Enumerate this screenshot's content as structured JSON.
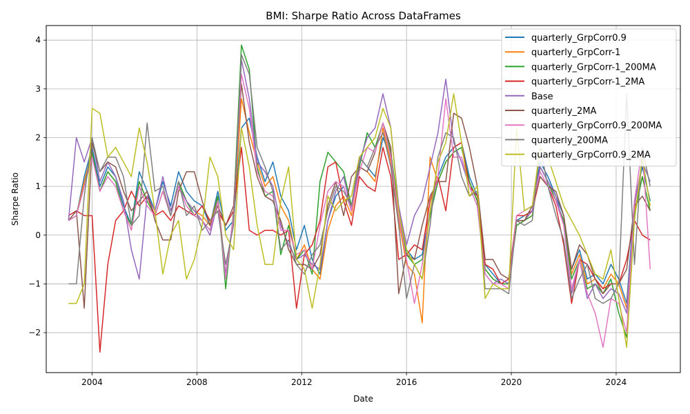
{
  "chart_data": {
    "type": "line",
    "title": "BMI: Sharpe Ratio Across DataFrames",
    "xlabel": "Date",
    "ylabel": "Sharpe Ratio",
    "xlim": [
      2002.25,
      2026.45
    ],
    "ylim": [
      -2.82,
      4.3
    ],
    "x_ticks": [
      2004,
      2008,
      2012,
      2016,
      2020,
      2024
    ],
    "x_tick_labels": [
      "2004",
      "2008",
      "2012",
      "2016",
      "2020",
      "2024"
    ],
    "y_ticks": [
      -2,
      -1,
      0,
      1,
      2,
      3,
      4
    ],
    "y_tick_labels": [
      "−2",
      "−1",
      "0",
      "1",
      "2",
      "3",
      "4"
    ],
    "grid": true,
    "legend_position": "top-right",
    "x": [
      2003.1,
      2003.4,
      2003.7,
      2004.0,
      2004.3,
      2004.6,
      2004.9,
      2005.2,
      2005.5,
      2005.8,
      2006.1,
      2006.4,
      2006.7,
      2007.0,
      2007.3,
      2007.6,
      2007.9,
      2008.2,
      2008.5,
      2008.8,
      2009.1,
      2009.4,
      2009.7,
      2010.0,
      2010.3,
      2010.6,
      2010.9,
      2011.2,
      2011.5,
      2011.8,
      2012.1,
      2012.4,
      2012.7,
      2013.0,
      2013.3,
      2013.6,
      2013.9,
      2014.2,
      2014.5,
      2014.8,
      2015.1,
      2015.4,
      2015.7,
      2016.0,
      2016.3,
      2016.6,
      2016.9,
      2017.2,
      2017.5,
      2017.8,
      2018.1,
      2018.4,
      2018.7,
      2019.0,
      2019.3,
      2019.6,
      2019.9,
      2020.2,
      2020.5,
      2020.8,
      2021.1,
      2021.4,
      2021.7,
      2022.0,
      2022.3,
      2022.6,
      2022.9,
      2023.2,
      2023.5,
      2023.8,
      2024.1,
      2024.4,
      2024.7,
      2025.0,
      2025.3
    ],
    "series": [
      {
        "name": "quarterly_GrpCorr0.9",
        "color": "#1f77b4",
        "values": [
          0.3,
          0.4,
          1.2,
          1.8,
          1.0,
          1.4,
          1.2,
          0.6,
          0.2,
          1.3,
          0.9,
          0.5,
          1.1,
          0.6,
          1.3,
          0.9,
          0.7,
          0.6,
          0.2,
          0.9,
          0.1,
          0.3,
          2.2,
          2.4,
          1.6,
          1.1,
          1.5,
          0.8,
          0.5,
          -0.3,
          0.2,
          -0.5,
          -0.8,
          0.3,
          0.8,
          1.0,
          0.5,
          1.6,
          1.4,
          1.2,
          2.0,
          1.6,
          0.4,
          -0.3,
          -0.5,
          -0.4,
          0.5,
          1.2,
          1.6,
          1.8,
          1.9,
          1.2,
          0.8,
          -0.6,
          -0.8,
          -1.0,
          -1.0,
          0.3,
          0.4,
          0.5,
          1.5,
          1.2,
          0.8,
          0.4,
          -0.7,
          -0.3,
          -0.9,
          -0.8,
          -1.0,
          -0.6,
          -0.9,
          -1.4,
          0.7,
          1.4,
          0.7
        ]
      },
      {
        "name": "quarterly_GrpCorr-1",
        "color": "#ff7f0e",
        "values": [
          0.3,
          0.4,
          1.1,
          1.7,
          0.9,
          1.3,
          1.1,
          0.5,
          0.1,
          1.1,
          0.7,
          0.4,
          0.9,
          0.4,
          1.1,
          0.7,
          0.5,
          0.4,
          0.2,
          0.8,
          -0.8,
          0.3,
          2.8,
          2.1,
          1.5,
          1.0,
          1.2,
          0.6,
          0.3,
          -0.5,
          -0.2,
          -0.7,
          -0.9,
          0.1,
          0.6,
          0.8,
          0.4,
          1.4,
          1.3,
          1.1,
          2.2,
          1.5,
          0.3,
          -0.6,
          -0.8,
          -1.8,
          1.6,
          1.1,
          1.5,
          1.7,
          1.8,
          1.1,
          0.7,
          -0.7,
          -0.9,
          -1.0,
          -1.0,
          0.2,
          0.3,
          0.4,
          1.4,
          1.1,
          0.7,
          0.3,
          -0.8,
          -0.4,
          -1.0,
          -0.9,
          -1.1,
          -0.8,
          -1.0,
          -1.5,
          0.5,
          1.2,
          0.5
        ]
      },
      {
        "name": "quarterly_GrpCorr-1_200MA",
        "color": "#2ca02c",
        "values": [
          0.3,
          0.4,
          1.0,
          1.7,
          0.9,
          1.3,
          1.1,
          0.5,
          0.2,
          1.1,
          0.7,
          0.4,
          0.9,
          0.4,
          1.1,
          0.7,
          0.4,
          0.3,
          0.1,
          0.8,
          -1.1,
          0.5,
          3.9,
          3.4,
          1.4,
          0.8,
          0.9,
          -0.4,
          0.2,
          -0.5,
          -0.3,
          -0.8,
          1.1,
          1.7,
          1.5,
          1.3,
          0.6,
          1.4,
          2.1,
          1.8,
          2.3,
          1.7,
          0.5,
          -0.4,
          -0.6,
          -0.5,
          0.4,
          1.1,
          1.5,
          1.7,
          1.8,
          1.1,
          0.7,
          -0.7,
          -0.9,
          -1.0,
          -1.0,
          0.2,
          0.3,
          0.4,
          1.4,
          1.1,
          0.7,
          0.3,
          -0.9,
          -0.5,
          -1.1,
          -1.0,
          -1.2,
          -0.9,
          -1.6,
          -2.1,
          0.4,
          1.2,
          0.5
        ]
      },
      {
        "name": "quarterly_GrpCorr-1_2MA",
        "color": "#d62728",
        "values": [
          0.4,
          0.5,
          0.4,
          0.4,
          -2.4,
          -0.6,
          0.3,
          0.5,
          0.9,
          0.6,
          0.8,
          0.4,
          0.5,
          0.3,
          0.6,
          0.5,
          0.4,
          0.6,
          0.3,
          0.5,
          0.2,
          0.5,
          1.8,
          0.1,
          0.0,
          0.1,
          0.1,
          0.0,
          0.1,
          -1.5,
          -0.4,
          -0.2,
          0.3,
          1.4,
          1.5,
          0.7,
          0.2,
          1.2,
          1.0,
          0.9,
          1.8,
          1.2,
          -0.5,
          -0.4,
          -0.2,
          -0.3,
          0.7,
          1.2,
          0.5,
          1.8,
          1.9,
          1.0,
          0.8,
          -0.6,
          -0.7,
          -1.0,
          -0.9,
          0.4,
          0.4,
          0.5,
          1.2,
          1.0,
          0.6,
          -0.2,
          -1.4,
          -0.5,
          -0.6,
          -0.9,
          -1.1,
          -1.0,
          -1.0,
          -0.5,
          0.3,
          0.0,
          -0.1
        ]
      },
      {
        "name": "Base",
        "color": "#9467bd",
        "values": [
          0.3,
          2.0,
          1.5,
          2.0,
          1.1,
          1.5,
          1.2,
          0.7,
          -0.3,
          -0.9,
          0.8,
          0.5,
          1.2,
          0.5,
          1.0,
          0.7,
          0.5,
          0.3,
          0.0,
          0.7,
          -0.8,
          0.4,
          3.6,
          2.8,
          1.5,
          1.3,
          1.0,
          0.2,
          -0.2,
          -0.5,
          -0.4,
          -0.6,
          -0.7,
          0.3,
          0.9,
          1.2,
          0.5,
          1.5,
          2.0,
          2.2,
          2.9,
          2.2,
          0.6,
          -0.2,
          0.4,
          0.7,
          1.4,
          2.1,
          3.2,
          1.9,
          1.5,
          1.0,
          0.6,
          -0.8,
          -1.0,
          -0.9,
          -1.0,
          0.3,
          0.3,
          0.5,
          1.4,
          1.1,
          0.8,
          0.2,
          -1.2,
          -0.5,
          -1.3,
          -1.0,
          -1.3,
          -1.1,
          -1.2,
          -1.6,
          0.6,
          1.5,
          1.1
        ]
      },
      {
        "name": "quarterly_2MA",
        "color": "#8c564b",
        "values": [
          0.3,
          0.5,
          -1.5,
          1.9,
          1.3,
          1.5,
          1.4,
          0.9,
          0.5,
          0.7,
          0.9,
          0.3,
          -0.1,
          -0.1,
          0.9,
          1.3,
          1.3,
          0.7,
          0.2,
          0.6,
          0.2,
          0.6,
          3.1,
          1.9,
          1.2,
          0.8,
          0.7,
          0.3,
          -0.3,
          -0.6,
          -0.6,
          -0.7,
          -0.4,
          0.6,
          1.1,
          0.4,
          1.2,
          1.4,
          1.3,
          1.7,
          2.3,
          1.8,
          -1.2,
          -0.4,
          -0.5,
          0.2,
          0.8,
          1.1,
          1.1,
          2.5,
          2.4,
          1.8,
          1.0,
          -0.5,
          -0.5,
          -0.8,
          -0.9,
          0.3,
          0.3,
          0.6,
          1.2,
          1.0,
          0.9,
          0.4,
          -0.7,
          -0.2,
          -0.4,
          -0.9,
          -1.2,
          -1.0,
          -1.0,
          -0.7,
          0.6,
          0.8,
          0.5
        ]
      },
      {
        "name": "quarterly_GrpCorr0.9_200MA",
        "color": "#e377c2",
        "values": [
          0.3,
          0.4,
          1.0,
          1.6,
          0.9,
          1.2,
          1.0,
          0.5,
          0.1,
          1.0,
          0.6,
          0.4,
          0.9,
          0.4,
          1.0,
          0.6,
          0.4,
          0.3,
          0.1,
          0.7,
          -0.9,
          0.4,
          3.3,
          2.6,
          1.3,
          0.9,
          0.8,
          0.1,
          0.1,
          -0.4,
          -0.3,
          -0.7,
          0.2,
          0.9,
          1.1,
          1.0,
          0.5,
          1.3,
          1.8,
          1.7,
          2.3,
          1.6,
          0.4,
          -0.5,
          -1.4,
          -0.6,
          0.5,
          1.2,
          2.8,
          1.6,
          1.6,
          1.0,
          0.6,
          -0.8,
          -1.0,
          -1.0,
          -1.1,
          0.4,
          0.5,
          0.6,
          1.3,
          1.0,
          0.7,
          0.2,
          -1.1,
          -0.5,
          -1.2,
          -1.6,
          -2.3,
          -1.3,
          -1.4,
          -2.0,
          0.7,
          1.8,
          -0.7
        ]
      },
      {
        "name": "quarterly_200MA",
        "color": "#7f7f7f",
        "values": [
          -1.0,
          -1.0,
          0.8,
          2.0,
          1.3,
          1.6,
          1.6,
          1.2,
          0.2,
          0.4,
          2.3,
          0.9,
          1.0,
          0.4,
          1.1,
          0.4,
          0.6,
          0.1,
          0.3,
          0.5,
          -0.6,
          0.2,
          3.7,
          3.3,
          1.8,
          1.4,
          0.9,
          -0.3,
          -0.1,
          -0.6,
          -0.8,
          -0.4,
          -0.2,
          0.5,
          1.0,
          0.9,
          0.6,
          1.6,
          1.4,
          1.8,
          2.1,
          1.4,
          0.2,
          -1.3,
          -0.6,
          -0.9,
          0.2,
          1.6,
          2.1,
          2.0,
          1.2,
          0.8,
          0.9,
          -1.1,
          -1.1,
          -1.1,
          -1.2,
          0.3,
          0.2,
          0.3,
          1.8,
          1.0,
          0.4,
          -0.1,
          -1.3,
          -0.9,
          -0.6,
          -1.3,
          -1.4,
          -1.3,
          -1.0,
          2.9,
          -0.6,
          1.8,
          1.0
        ]
      },
      {
        "name": "quarterly_GrpCorr0.9_2MA",
        "color": "#bcbd22",
        "values": [
          -1.4,
          -1.4,
          -1.0,
          2.6,
          2.5,
          1.6,
          1.8,
          1.5,
          1.2,
          2.2,
          1.5,
          0.5,
          -0.8,
          0.0,
          0.3,
          -0.9,
          -0.5,
          0.2,
          1.6,
          1.2,
          0.0,
          -0.3,
          2.2,
          1.4,
          0.2,
          -0.6,
          -0.6,
          0.7,
          1.4,
          -0.5,
          -0.7,
          -1.5,
          -0.6,
          0.8,
          0.5,
          0.7,
          0.8,
          1.6,
          1.8,
          2.0,
          2.6,
          2.2,
          0.5,
          -0.3,
          -0.6,
          -0.9,
          0.5,
          1.5,
          1.9,
          2.9,
          1.9,
          0.8,
          1.0,
          -1.3,
          -1.0,
          -1.1,
          -1.1,
          2.2,
          0.5,
          0.6,
          1.8,
          1.6,
          1.1,
          0.6,
          0.3,
          0.0,
          -0.4,
          -0.8,
          -0.9,
          -0.3,
          -1.3,
          -2.3,
          0.3,
          1.6,
          0.6
        ]
      }
    ]
  }
}
